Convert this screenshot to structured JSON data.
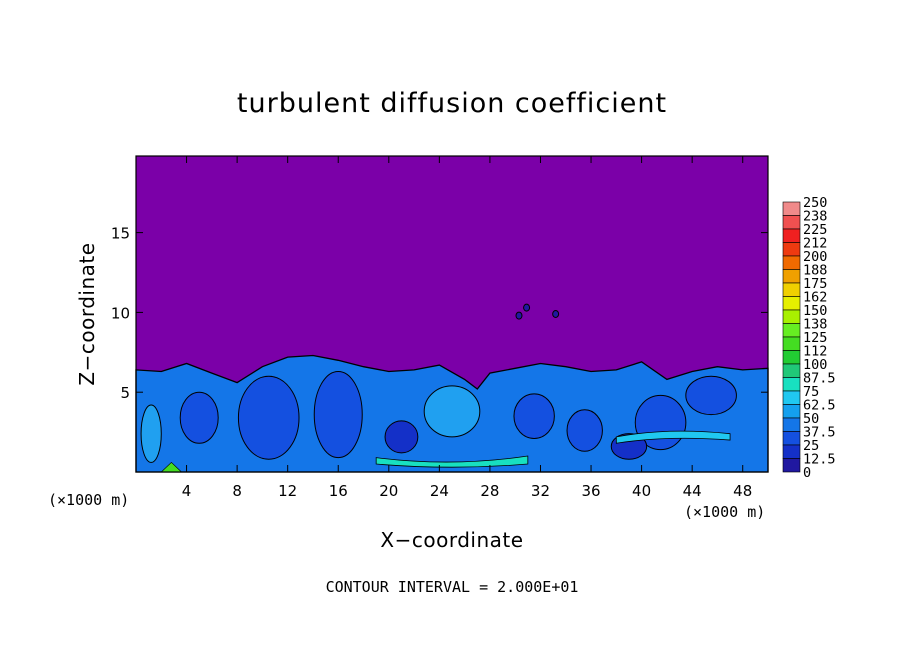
{
  "chart_data": {
    "type": "heatmap",
    "title": "turbulent diffusion coefficient",
    "xlabel": "X−coordinate",
    "ylabel": "Z−coordinate",
    "x_unit_left": "(×1000 m)",
    "x_unit_right": "(×1000 m)",
    "footer": "CONTOUR INTERVAL = 2.000E+01",
    "xlim": [
      0,
      50
    ],
    "ylim": [
      0,
      19.8
    ],
    "x_ticks": [
      "4",
      "8",
      "12",
      "16",
      "20",
      "24",
      "28",
      "32",
      "36",
      "40",
      "44",
      "48"
    ],
    "x_tick_values": [
      4,
      8,
      12,
      16,
      20,
      24,
      28,
      32,
      36,
      40,
      44,
      48
    ],
    "y_ticks": [
      "5",
      "10",
      "15"
    ],
    "y_tick_values": [
      5,
      10,
      15
    ],
    "colorbar_labels": [
      "250",
      "238",
      "225",
      "212",
      "200",
      "188",
      "175",
      "162",
      "150",
      "138",
      "125",
      "112",
      "100",
      "87.5",
      "75",
      "62.5",
      "50",
      "37.5",
      "25",
      "12.5",
      "0"
    ],
    "colorbar_colors": [
      "#f08a8a",
      "#f05050",
      "#f02020",
      "#ee3a10",
      "#f06a00",
      "#f0a000",
      "#f0d000",
      "#e6ef00",
      "#a8f000",
      "#66ee22",
      "#44dd22",
      "#22cc33",
      "#20c878",
      "#18e0c0",
      "#20c8f0",
      "#14a0ee",
      "#1476e8",
      "#1450e0",
      "#1430c8",
      "#2018a0",
      "#7b00a8"
    ],
    "background_value_color": "#7b00a8",
    "boundary_layer_top_profile": [
      [
        0,
        6.4
      ],
      [
        2,
        6.3
      ],
      [
        4,
        6.8
      ],
      [
        6,
        6.2
      ],
      [
        8,
        5.6
      ],
      [
        10,
        6.6
      ],
      [
        12,
        7.2
      ],
      [
        14,
        7.3
      ],
      [
        16,
        7.0
      ],
      [
        18,
        6.6
      ],
      [
        20,
        6.3
      ],
      [
        22,
        6.4
      ],
      [
        24,
        6.7
      ],
      [
        26,
        5.8
      ],
      [
        27,
        5.2
      ],
      [
        28,
        6.2
      ],
      [
        30,
        6.5
      ],
      [
        32,
        6.8
      ],
      [
        34,
        6.6
      ],
      [
        36,
        6.3
      ],
      [
        38,
        6.4
      ],
      [
        40,
        6.9
      ],
      [
        42,
        5.8
      ],
      [
        44,
        6.3
      ],
      [
        46,
        6.6
      ],
      [
        48,
        6.4
      ],
      [
        50,
        6.5
      ]
    ]
  }
}
